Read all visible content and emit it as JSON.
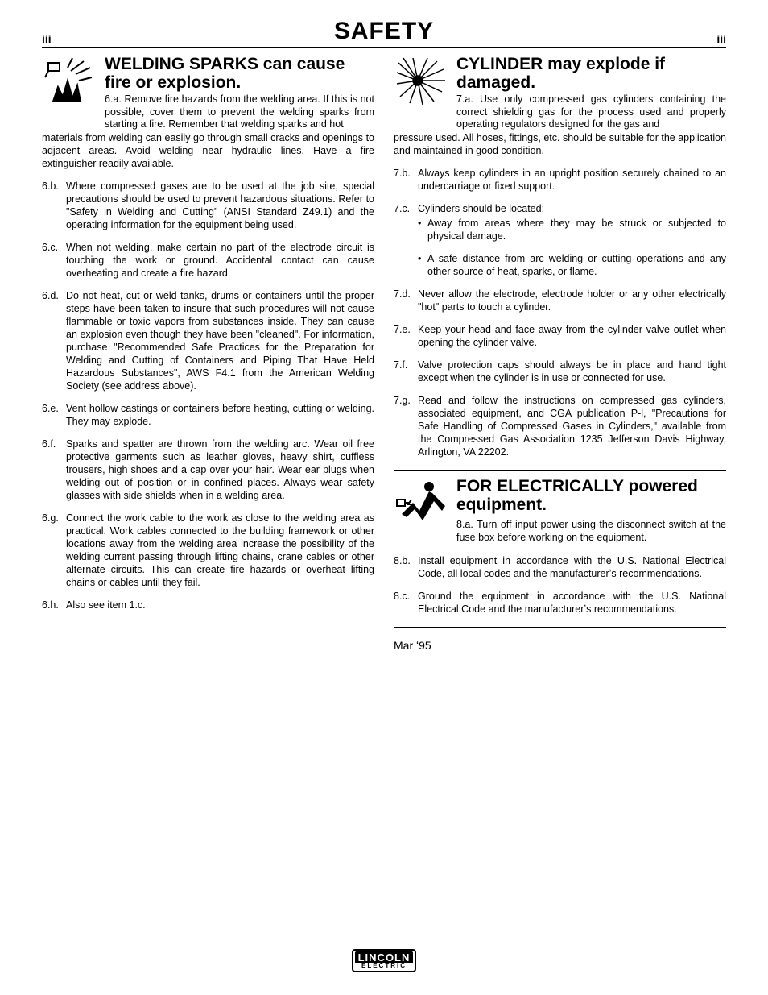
{
  "page": {
    "number_left": "iii",
    "number_right": "iii",
    "title": "SAFETY",
    "date": "Mar ʻ95",
    "logo_top": "LINCOLN",
    "logo_bottom": "ELECTRIC"
  },
  "fonts": {
    "body_size_pt": 12.5,
    "title_size_pt": 30,
    "heading_size_pt": 21
  },
  "colors": {
    "text": "#000000",
    "background": "#ffffff",
    "rule": "#000000"
  },
  "left": {
    "heading": "WELDING SPARKS can cause fire or explosion.",
    "first_label": "6.a.",
    "first_text": "Remove fire hazards from the welding area. If this is not possible, cover them to prevent the welding sparks from starting a fire. Remember that welding sparks and hot",
    "cont_text": "materials from welding can easily go through small cracks and openings to adjacent areas. Avoid welding near hydraulic lines. Have a fire extinguisher readily available.",
    "items": [
      {
        "label": "6.b.",
        "text": "Where compressed gases are to be used at the job site, special precautions should be used to prevent hazardous situations. Refer to \"Safety in Welding and Cutting\" (ANSI Standard Z49.1) and the operating information for the equipment being used."
      },
      {
        "label": "6.c.",
        "text": "When not welding, make certain no part of the electrode circuit is touching the work or ground. Accidental contact can cause overheating and create a fire hazard."
      },
      {
        "label": "6.d.",
        "text": "Do not heat, cut or weld tanks, drums or containers until the proper steps have been taken to insure that such procedures will not cause flammable or toxic vapors from substances inside. They can cause an explosion even though they have been \"cleaned\". For information, purchase \"Recommended Safe Practices for the Preparation for Welding and Cutting of Containers and Piping That Have Held Hazardous Substances\", AWS F4.1 from the American Welding Society (see address above)."
      },
      {
        "label": "6.e.",
        "text": "Vent hollow castings or containers before heating, cutting or welding. They may explode."
      },
      {
        "label": "6.f.",
        "text": "Sparks and spatter are thrown from the welding arc. Wear oil free protective garments such as leather gloves, heavy shirt, cuffless trousers, high shoes and a cap over your hair. Wear ear plugs when welding out of position or in confined places. Always wear safety glasses with side shields when in a welding area."
      },
      {
        "label": "6.g.",
        "text": "Connect the work cable to the work as close to the welding area as practical. Work cables connected to the building framework or other locations away from the welding area increase the possibility of the welding current passing through lifting chains, crane cables or other alternate circuits. This can create fire hazards or overheat lifting chains or cables until they fail."
      },
      {
        "label": "6.h.",
        "text": "Also see item 1.c."
      }
    ]
  },
  "right_a": {
    "heading": "CYLINDER may explode if damaged.",
    "first_label": "7.a.",
    "first_text": "Use only compressed gas cylinders containing the correct shielding gas for the process used and properly operating regulators designed for the gas and",
    "cont_text": "pressure used. All hoses, fittings, etc. should be suitable for the application and maintained in good condition.",
    "items": [
      {
        "label": "7.b.",
        "text": "Always keep cylinders in an upright position securely chained to an undercarriage or fixed support."
      },
      {
        "label": "7.c.",
        "text": "Cylinders should be located:",
        "subs": [
          "Away from areas where they may be struck or subjected to physical damage.",
          "A safe distance from arc welding or cutting operations and any other source of heat, sparks, or flame."
        ]
      },
      {
        "label": "7.d.",
        "text": "Never allow the electrode, electrode holder or any other electrically \"hot\" parts to touch a cylinder."
      },
      {
        "label": "7.e.",
        "text": "Keep your head and face away from the cylinder valve outlet when opening the cylinder valve."
      },
      {
        "label": "7.f.",
        "text": "Valve protection caps should always be in place and hand tight except when the cylinder is in use or connected for use."
      },
      {
        "label": "7.g.",
        "text": "Read and follow the instructions on compressed gas cylinders, associated equipment, and CGA publication P-l, \"Precautions for Safe Handling of Compressed Gases in Cylinders,\" available from the Compressed Gas Association 1235 Jefferson Davis Highway, Arlington, VA 22202."
      }
    ]
  },
  "right_b": {
    "heading": "FOR ELECTRICALLY powered equipment.",
    "first_label": "8.a.",
    "first_text": "Turn off input power using the disconnect switch at the fuse box before working on the equipment.",
    "items": [
      {
        "label": "8.b.",
        "text": "Install equipment in accordance with the U.S. National Electrical Code, all local codes and the manufacturerʼs recommendations."
      },
      {
        "label": "8.c.",
        "text": "Ground the equipment in accordance with the U.S. National Electrical Code and the manufacturerʼs recommendations."
      }
    ]
  }
}
